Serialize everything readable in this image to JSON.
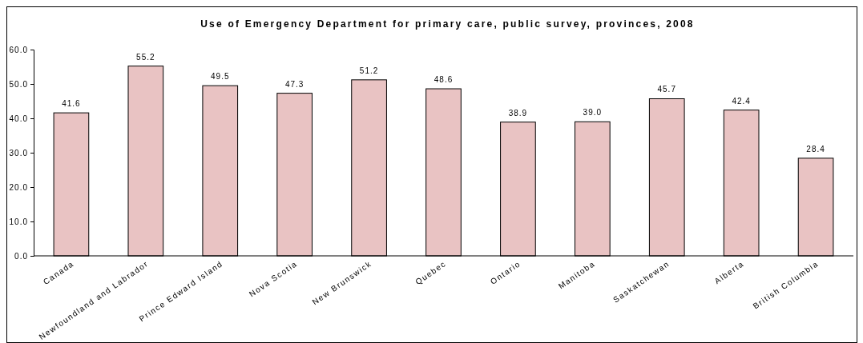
{
  "chart_data": {
    "type": "bar",
    "title": "Use of Emergency Department for primary care, public survey, provinces, 2008",
    "categories": [
      "Canada",
      "Newfoundland and Labrador",
      "Prince Edward Island",
      "Nova Scotia",
      "New Brunswick",
      "Quebec",
      "Ontario",
      "Manitoba",
      "Saskatchewan",
      "Alberta",
      "British Columbia"
    ],
    "values": [
      41.6,
      55.2,
      49.5,
      47.3,
      51.2,
      48.6,
      38.9,
      39.0,
      45.7,
      42.4,
      28.4
    ],
    "value_labels": [
      "41.6",
      "55.2",
      "49.5",
      "47.3",
      "51.2",
      "48.6",
      "38.9",
      "39.0",
      "45.7",
      "42.4",
      "28.4"
    ],
    "color": "#e9c3c3",
    "ylim": [
      0,
      60
    ],
    "yticks": [
      {
        "value": 0,
        "label": "0.0"
      },
      {
        "value": 10,
        "label": "10.0"
      },
      {
        "value": 20,
        "label": "20.0"
      },
      {
        "value": 30,
        "label": "30.0"
      },
      {
        "value": 40,
        "label": "40.0"
      },
      {
        "value": 50,
        "label": "50.0"
      },
      {
        "value": 60,
        "label": "60.0"
      }
    ],
    "grid": false
  }
}
